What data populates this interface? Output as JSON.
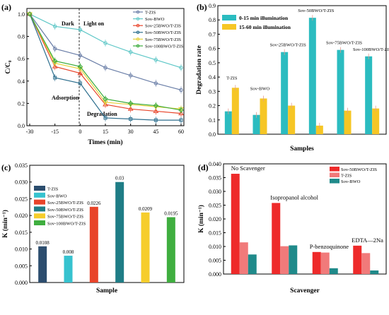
{
  "chart_data": [
    {
      "panel": "(a)",
      "type": "line",
      "xlabel": "Times (min)",
      "ylabel": "C/C₀",
      "x_ticks": [
        "-30",
        "-15",
        "0",
        "15",
        "30",
        "45",
        "60"
      ],
      "y_ticks": [
        "0.0",
        "0.2",
        "0.4",
        "0.6",
        "0.8",
        "1.0"
      ],
      "xlim": [
        -30,
        60
      ],
      "ylim": [
        0,
        1.05
      ],
      "annotations": [
        "Dark",
        "Light on",
        "Adsorption",
        "Degradation"
      ],
      "x": [
        -30,
        -15,
        0,
        15,
        30,
        45,
        60
      ],
      "series": [
        {
          "name": "T-ZIS",
          "color": "#6b7fa8",
          "marker": "o",
          "values": [
            1.0,
            0.69,
            0.63,
            0.52,
            0.45,
            0.38,
            0.32
          ]
        },
        {
          "name": "Sov-BWO",
          "color": "#5ec7c7",
          "marker": "o",
          "values": [
            1.0,
            0.89,
            0.86,
            0.74,
            0.66,
            0.59,
            0.52
          ]
        },
        {
          "name": "Sov-25BWO/T-ZIS",
          "color": "#e8442a",
          "marker": "triangle-up",
          "values": [
            1.0,
            0.53,
            0.47,
            0.19,
            0.15,
            0.13,
            0.11
          ]
        },
        {
          "name": "Sov-50BWO/T-ZIS",
          "color": "#2e6f8e",
          "marker": "square",
          "values": [
            1.0,
            0.43,
            0.38,
            0.07,
            0.06,
            0.05,
            0.05
          ]
        },
        {
          "name": "Sov-75BWO/T-ZIS",
          "color": "#e6d23a",
          "marker": "triangle-down",
          "values": [
            1.0,
            0.56,
            0.51,
            0.21,
            0.19,
            0.17,
            0.15
          ]
        },
        {
          "name": "Sov-100BWO/T-ZIS",
          "color": "#3aab3a",
          "marker": "diamond",
          "values": [
            1.0,
            0.58,
            0.53,
            0.24,
            0.2,
            0.18,
            0.14
          ]
        }
      ]
    },
    {
      "panel": "(b)",
      "type": "bar",
      "xlabel": "Samples",
      "ylabel": "Degradation rate",
      "y_ticks": [
        "0.0",
        "0.1",
        "0.2",
        "0.3",
        "0.4",
        "0.5",
        "0.6",
        "0.7",
        "0.8",
        "0.9"
      ],
      "ylim": [
        0,
        0.9
      ],
      "categories": [
        "T-ZIS",
        "Sov-BWO",
        "Sov-25BWO/T-ZIS",
        "Sov-50BWO/T-ZIS",
        "Sov-75BWO/T-ZIS",
        "Sov-100BWO/T-ZIS"
      ],
      "series": [
        {
          "name": "0-15 min illumination",
          "color": "#2bbcc0",
          "values": [
            0.16,
            0.135,
            0.575,
            0.815,
            0.59,
            0.545
          ]
        },
        {
          "name": "15-60 min illumination",
          "color": "#f6c625",
          "values": [
            0.325,
            0.25,
            0.2,
            0.06,
            0.165,
            0.18
          ]
        }
      ],
      "legend_position": "top-left"
    },
    {
      "panel": "(c)",
      "type": "bar",
      "xlabel": "Sample",
      "ylabel": "K (min⁻¹)",
      "y_ticks": [
        "0.000",
        "0.005",
        "0.010",
        "0.015",
        "0.020",
        "0.025",
        "0.030",
        "0.035"
      ],
      "ylim": [
        0,
        0.035
      ],
      "categories": [
        "T-ZIS",
        "Sov-BWO",
        "Sov-25BWO/T-ZIS",
        "Sov-50BWO/T-ZIS",
        "Sov-75BWO/T-ZIS",
        "Sov-100BWO/T-ZIS"
      ],
      "colors": [
        "#2c4d6e",
        "#36c2cf",
        "#e8442a",
        "#1f7d86",
        "#f6cd2c",
        "#3fae3f"
      ],
      "values": [
        0.0108,
        0.008,
        0.0226,
        0.03,
        0.0209,
        0.0195
      ],
      "data_labels": [
        "0.0108",
        "0.008",
        "0.0226",
        "0.03",
        "0.0209",
        "0.0195"
      ],
      "legend_position": "top-left"
    },
    {
      "panel": "(d)",
      "type": "bar",
      "xlabel": "Scavenger",
      "ylabel": "K (min⁻¹)",
      "y_ticks": [
        "0.000",
        "0.005",
        "0.010",
        "0.015",
        "0.020",
        "0.025",
        "0.030",
        "0.035",
        "0.040"
      ],
      "ylim": [
        0,
        0.04
      ],
      "categories": [
        "No Scavenger",
        "Isopropanol alcohol",
        "P-benzoquinone",
        "EDTA—2Na"
      ],
      "series": [
        {
          "name": "Sov-50BWO/T-ZIS",
          "color": "#ee2a2a",
          "values": [
            0.0364,
            0.0258,
            0.008,
            0.0103
          ]
        },
        {
          "name": "T-ZIS",
          "color": "#f17a7a",
          "values": [
            0.0115,
            0.0101,
            0.0078,
            0.0076
          ]
        },
        {
          "name": "Sov-BWO",
          "color": "#1f8a8a",
          "values": [
            0.0071,
            0.0104,
            0.0021,
            0.0013
          ]
        }
      ],
      "legend_position": "top-right"
    }
  ]
}
